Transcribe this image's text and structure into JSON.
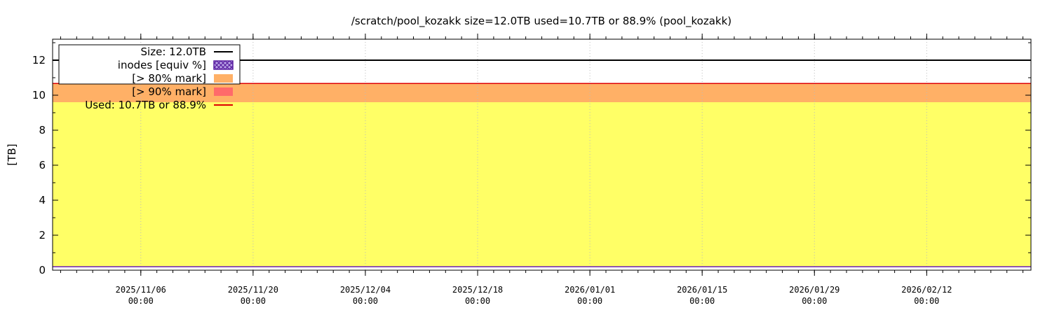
{
  "chart_data": {
    "type": "area",
    "title": "/scratch/pool_kozakk size=12.0TB used=10.7TB or 88.9% (pool_kozakk)",
    "ylabel": "[TB]",
    "xlabel": "",
    "ylim": [
      0,
      13.2
    ],
    "xlim": [
      "2025-10-26",
      "2026-02-25"
    ],
    "yticks": [
      "0",
      "2",
      "4",
      "6",
      "8",
      "10",
      "12"
    ],
    "xticks": [
      {
        "date": "2025-11-06",
        "label1": "2025/11/06",
        "label2": "00:00"
      },
      {
        "date": "2025-11-20",
        "label1": "2025/11/20",
        "label2": "00:00"
      },
      {
        "date": "2025-12-04",
        "label1": "2025/12/04",
        "label2": "00:00"
      },
      {
        "date": "2025-12-18",
        "label1": "2025/12/18",
        "label2": "00:00"
      },
      {
        "date": "2026-01-01",
        "label1": "2026/01/01",
        "label2": "00:00"
      },
      {
        "date": "2026-01-15",
        "label1": "2026/01/15",
        "label2": "00:00"
      },
      {
        "date": "2026-01-29",
        "label1": "2026/01/29",
        "label2": "00:00"
      },
      {
        "date": "2026-02-12",
        "label1": "2026/02/12",
        "label2": "00:00"
      }
    ],
    "grid": true,
    "legend_position": "top-left",
    "series": [
      {
        "name": "Size: 12.0TB",
        "kind": "line",
        "color": "#000000",
        "x": [
          "2025-10-26",
          "2026-02-25"
        ],
        "y": [
          12.0,
          12.0
        ]
      },
      {
        "name": "inodes [equiv %]",
        "kind": "line",
        "color": "#6a1fb0",
        "x": [
          "2025-10-26",
          "2026-02-25"
        ],
        "y": [
          0.2,
          0.2
        ]
      },
      {
        "name": "[> 80% mark]",
        "kind": "area",
        "color": "#ffb066",
        "x": [
          "2025-10-26",
          "2026-02-25"
        ],
        "y_from": [
          9.6,
          9.6
        ],
        "y": [
          10.67,
          10.67
        ]
      },
      {
        "name": "[> 90% mark]",
        "kind": "area",
        "color": "#ff6a6a",
        "x": [],
        "y": []
      },
      {
        "name": "Used: 10.7TB or 88.9%",
        "kind": "line",
        "color": "#dd0000",
        "x": [
          "2025-10-26",
          "2026-02-25"
        ],
        "y": [
          10.67,
          10.67
        ]
      }
    ],
    "used_fill": {
      "color": "#ffff66",
      "from": 0.2,
      "to": 9.6
    }
  }
}
